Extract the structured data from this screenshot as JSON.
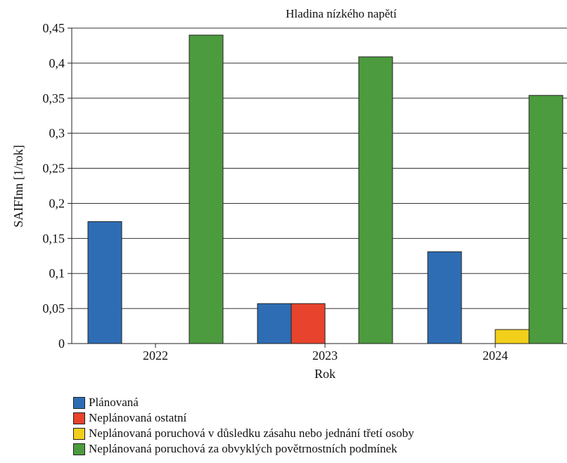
{
  "chart_data": {
    "type": "bar",
    "title": "Hladina nízkého napětí",
    "xlabel": "Rok",
    "ylabel": "SAIFInn [1/rok]",
    "ylim": [
      0,
      0.45
    ],
    "yticks": [
      {
        "value": 0,
        "label": "0"
      },
      {
        "value": 0.05,
        "label": "0,05"
      },
      {
        "value": 0.1,
        "label": "0,1"
      },
      {
        "value": 0.15,
        "label": "0,15"
      },
      {
        "value": 0.2,
        "label": "0,2"
      },
      {
        "value": 0.25,
        "label": "0,25"
      },
      {
        "value": 0.3,
        "label": "0,3"
      },
      {
        "value": 0.35,
        "label": "0,35"
      },
      {
        "value": 0.4,
        "label": "0,4"
      },
      {
        "value": 0.45,
        "label": "0,45"
      }
    ],
    "grid": true,
    "legend_position": "bottom-left",
    "categories": [
      "2022",
      "2023",
      "2024"
    ],
    "series": [
      {
        "name": "Plánovaná",
        "color": "#2e6db4",
        "values": [
          0.174,
          0.057,
          0.131
        ]
      },
      {
        "name": "Neplánovaná ostatní",
        "color": "#e8432d",
        "values": [
          0,
          0.057,
          0
        ]
      },
      {
        "name": "Neplánovaná poruchová v důsledku zásahu nebo jednání třetí osoby",
        "color": "#f2cf1b",
        "values": [
          0,
          0,
          0.02
        ]
      },
      {
        "name": "Neplánovaná poruchová za obvyklých povětrnostních podmínek",
        "color": "#4c9b3e",
        "values": [
          0.44,
          0.409,
          0.354
        ]
      }
    ]
  }
}
